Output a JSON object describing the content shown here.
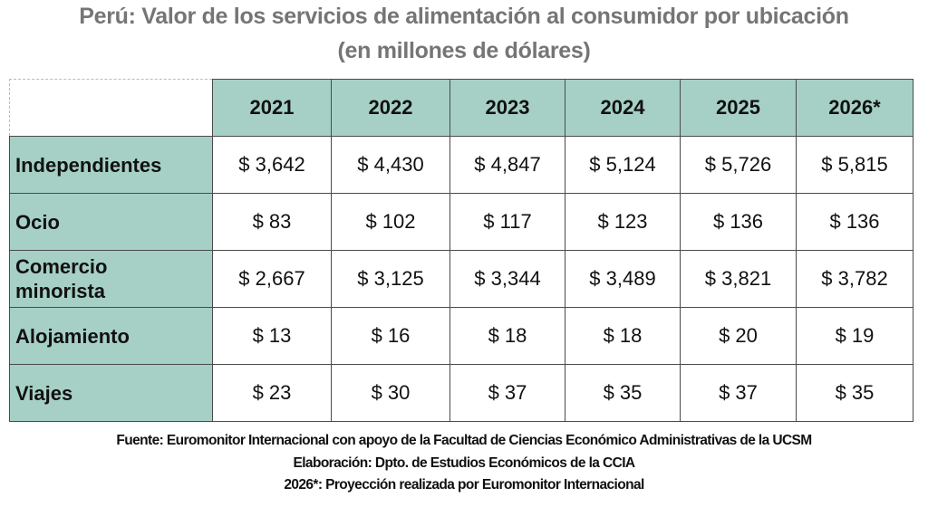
{
  "title": {
    "line1": "Perú: Valor de los servicios de alimentación al consumidor por ubicación",
    "line2": "(en millones de dólares)"
  },
  "table": {
    "columns": [
      "2021",
      "2022",
      "2023",
      "2024",
      "2025",
      "2026*"
    ],
    "rows": [
      {
        "label": "Independientes",
        "values": [
          "$ 3,642",
          "$ 4,430",
          "$ 4,847",
          "$ 5,124",
          "$ 5,726",
          "$ 5,815"
        ]
      },
      {
        "label": "Ocio",
        "values": [
          "$ 83",
          "$ 102",
          "$ 117",
          "$ 123",
          "$ 136",
          "$ 136"
        ]
      },
      {
        "label": "Comercio minorista",
        "values": [
          "$ 2,667",
          "$ 3,125",
          "$ 3,344",
          "$ 3,489",
          "$ 3,821",
          "$ 3,782"
        ]
      },
      {
        "label": "Alojamiento",
        "values": [
          "$ 13",
          "$ 16",
          "$ 18",
          "$ 18",
          "$ 20",
          "$ 19"
        ]
      },
      {
        "label": "Viajes",
        "values": [
          "$ 23",
          "$ 30",
          "$ 37",
          "$ 35",
          "$ 37",
          "$ 35"
        ]
      }
    ]
  },
  "footer": {
    "source": "Fuente: Euromonitor Internacional con apoyo de la Facultad de Ciencias Económico Administrativas de la UCSM",
    "elaboration": "Elaboración: Dpto. de Estudios Económicos de la CCIA",
    "note": "2026*: Proyección realizada por Euromonitor Internacional"
  },
  "colors": {
    "header_fill": "#a6d0c6",
    "title_text": "#757575"
  }
}
